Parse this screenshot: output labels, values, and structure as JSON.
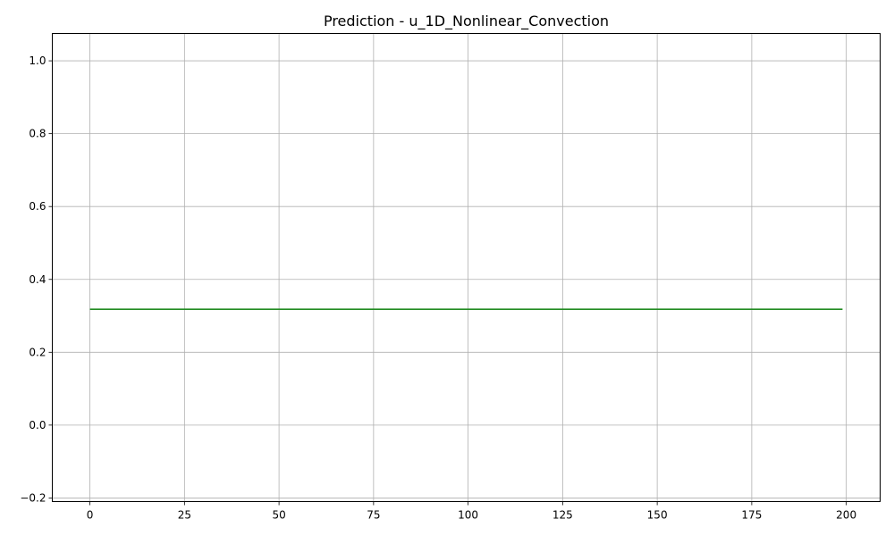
{
  "chart_data": {
    "type": "line",
    "title": "Prediction - u_1D_Nonlinear_Convection",
    "xlabel": "",
    "ylabel": "",
    "xlim": [
      -9.95,
      208.95
    ],
    "ylim": [
      -0.21,
      1.075
    ],
    "x_ticks": [
      0,
      25,
      50,
      75,
      100,
      125,
      150,
      175,
      200
    ],
    "y_ticks": [
      -0.2,
      0.0,
      0.2,
      0.4,
      0.6,
      0.8,
      1.0
    ],
    "x_tick_labels": [
      "0",
      "25",
      "50",
      "75",
      "100",
      "125",
      "150",
      "175",
      "200"
    ],
    "y_tick_labels": [
      "−0.2",
      "0.0",
      "0.2",
      "0.4",
      "0.6",
      "0.8",
      "1.0"
    ],
    "grid": true,
    "series": [
      {
        "color": "#228b22",
        "x": [
          0,
          199
        ],
        "y": [
          0.318,
          0.318
        ]
      }
    ]
  }
}
